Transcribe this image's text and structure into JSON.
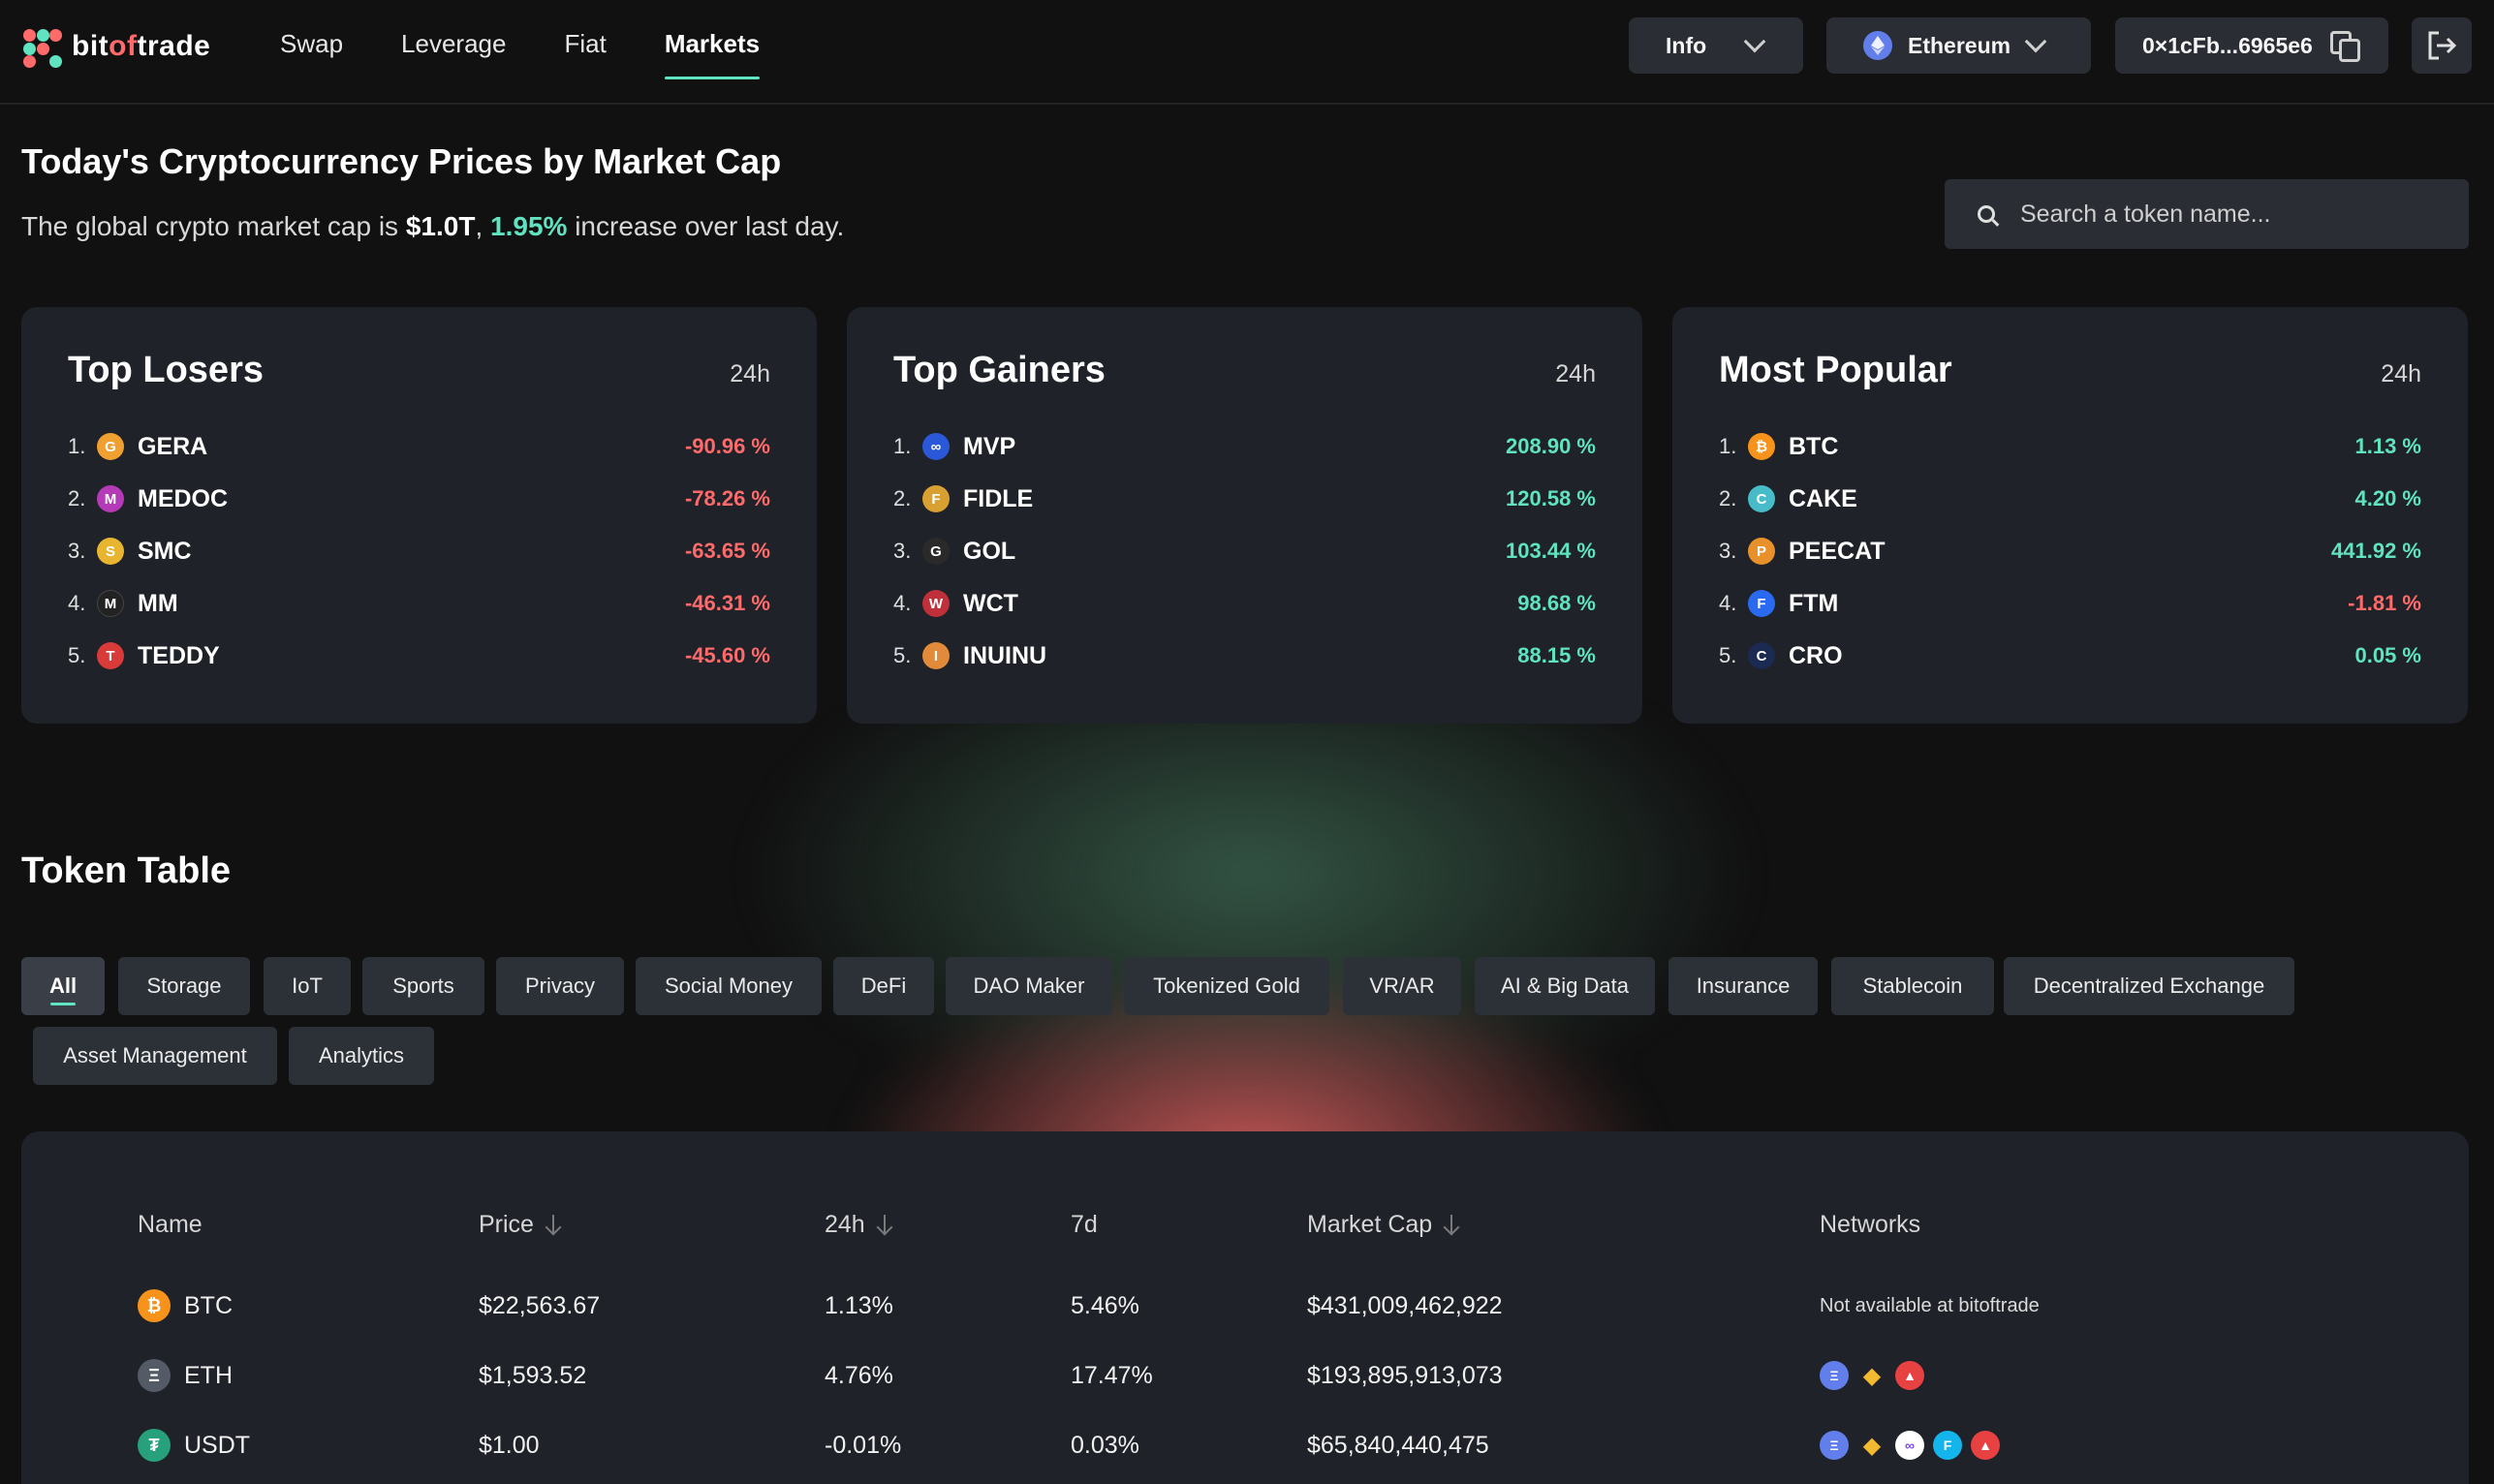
{
  "brand": {
    "name_pre": "bit",
    "name_hl": "of",
    "name_post": "trade"
  },
  "nav": [
    {
      "label": "Swap"
    },
    {
      "label": "Leverage"
    },
    {
      "label": "Fiat"
    },
    {
      "label": "Markets",
      "active": true
    }
  ],
  "header": {
    "info_label": "Info",
    "network_label": "Ethereum",
    "wallet_address": "0×1cFb...6965e6"
  },
  "overview": {
    "title": "Today's Cryptocurrency Prices by Market Cap",
    "sub_pre": "The global crypto market cap is",
    "market_cap": "$1.0T",
    "sep": ",",
    "change": "1.95%",
    "sub_post": "increase over last day."
  },
  "search": {
    "placeholder": "Search a token name..."
  },
  "colors": {
    "accent": "#5fe3c0",
    "negative": "#ff6b6b",
    "card": "#1f2228",
    "chip": "#2c3138"
  },
  "cards": [
    {
      "title": "Top Losers",
      "period": "24h",
      "items": [
        {
          "rank": "1.",
          "symbol": "GERA",
          "change": "-90.96 %",
          "dir": "neg",
          "icon": "gera-icon",
          "color": "#f0a030"
        },
        {
          "rank": "2.",
          "symbol": "MEDOC",
          "change": "-78.26 %",
          "dir": "neg",
          "icon": "medoc-icon",
          "color": "#b43ab8"
        },
        {
          "rank": "3.",
          "symbol": "SMC",
          "change": "-63.65 %",
          "dir": "neg",
          "icon": "smc-icon",
          "color": "#e8b530"
        },
        {
          "rank": "4.",
          "symbol": "MM",
          "change": "-46.31 %",
          "dir": "neg",
          "icon": "mm-icon",
          "color": "#222222"
        },
        {
          "rank": "5.",
          "symbol": "TEDDY",
          "change": "-45.60 %",
          "dir": "neg",
          "icon": "teddy-icon",
          "color": "#d93a3a"
        }
      ]
    },
    {
      "title": "Top Gainers",
      "period": "24h",
      "items": [
        {
          "rank": "1.",
          "symbol": "MVP",
          "change": "208.90 %",
          "dir": "pos",
          "icon": "mvp-icon",
          "color": "#2a58d8"
        },
        {
          "rank": "2.",
          "symbol": "FIDLE",
          "change": "120.58 %",
          "dir": "pos",
          "icon": "fidle-icon",
          "color": "#d8a030"
        },
        {
          "rank": "3.",
          "symbol": "GOL",
          "change": "103.44 %",
          "dir": "pos",
          "icon": "gol-icon",
          "color": "#2a2a2a"
        },
        {
          "rank": "4.",
          "symbol": "WCT",
          "change": "98.68 %",
          "dir": "pos",
          "icon": "wct-icon",
          "color": "#c0303a"
        },
        {
          "rank": "5.",
          "symbol": "INUINU",
          "change": "88.15 %",
          "dir": "pos",
          "icon": "inuinu-icon",
          "color": "#e08a3a"
        }
      ]
    },
    {
      "title": "Most Popular",
      "period": "24h",
      "items": [
        {
          "rank": "1.",
          "symbol": "BTC",
          "change": "1.13 %",
          "dir": "pos",
          "icon": "btc-icon",
          "color": "#f7931a"
        },
        {
          "rank": "2.",
          "symbol": "CAKE",
          "change": "4.20 %",
          "dir": "pos",
          "icon": "cake-icon",
          "color": "#47bcc8"
        },
        {
          "rank": "3.",
          "symbol": "PEECAT",
          "change": "441.92 %",
          "dir": "pos",
          "icon": "peecat-icon",
          "color": "#e8902a"
        },
        {
          "rank": "4.",
          "symbol": "FTM",
          "change": "-1.81 %",
          "dir": "neg",
          "icon": "ftm-icon",
          "color": "#2a6af0"
        },
        {
          "rank": "5.",
          "symbol": "CRO",
          "change": "0.05 %",
          "dir": "pos",
          "icon": "cro-icon",
          "color": "#1a2a50"
        }
      ]
    }
  ],
  "token_table": {
    "title": "Token Table",
    "filters": [
      "All",
      "Storage",
      "IoT",
      "Sports",
      "Privacy",
      "Social Money",
      "DeFi",
      "DAO Maker",
      "Tokenized Gold",
      "VR/AR",
      "AI & Big Data",
      "Insurance",
      "Stablecoin",
      "Decentralized Exchange",
      "Asset Management",
      "Analytics"
    ],
    "active_filter": "All",
    "columns": {
      "name": "Name",
      "price": "Price",
      "h24": "24h",
      "d7": "7d",
      "mcap": "Market Cap",
      "networks": "Networks"
    },
    "rows": [
      {
        "name": "BTC",
        "icon": "btc-icon",
        "color": "#f7931a",
        "price": "$22,563.67",
        "h24": "1.13%",
        "h24_dir": "pos",
        "d7": "5.46%",
        "d7_dir": "pos",
        "mcap": "$431,009,462,922",
        "networks_text": "Not available at bitoftrade",
        "networks": []
      },
      {
        "name": "ETH",
        "icon": "eth-icon",
        "color": "#555b66",
        "price": "$1,593.52",
        "h24": "4.76%",
        "h24_dir": "pos",
        "d7": "17.47%",
        "d7_dir": "pos",
        "mcap": "$193,895,913,073",
        "networks_text": "",
        "networks": [
          "ethereum-icon",
          "bnb-icon",
          "avalanche-icon"
        ]
      },
      {
        "name": "USDT",
        "icon": "usdt-icon",
        "color": "#26a17b",
        "price": "$1.00",
        "h24": "-0.01%",
        "h24_dir": "neg",
        "d7": "0.03%",
        "d7_dir": "pos",
        "mcap": "$65,840,440,475",
        "networks_text": "",
        "networks": [
          "ethereum-icon",
          "bnb-icon",
          "polygon-icon",
          "fantom-icon",
          "avalanche-icon"
        ]
      }
    ]
  }
}
